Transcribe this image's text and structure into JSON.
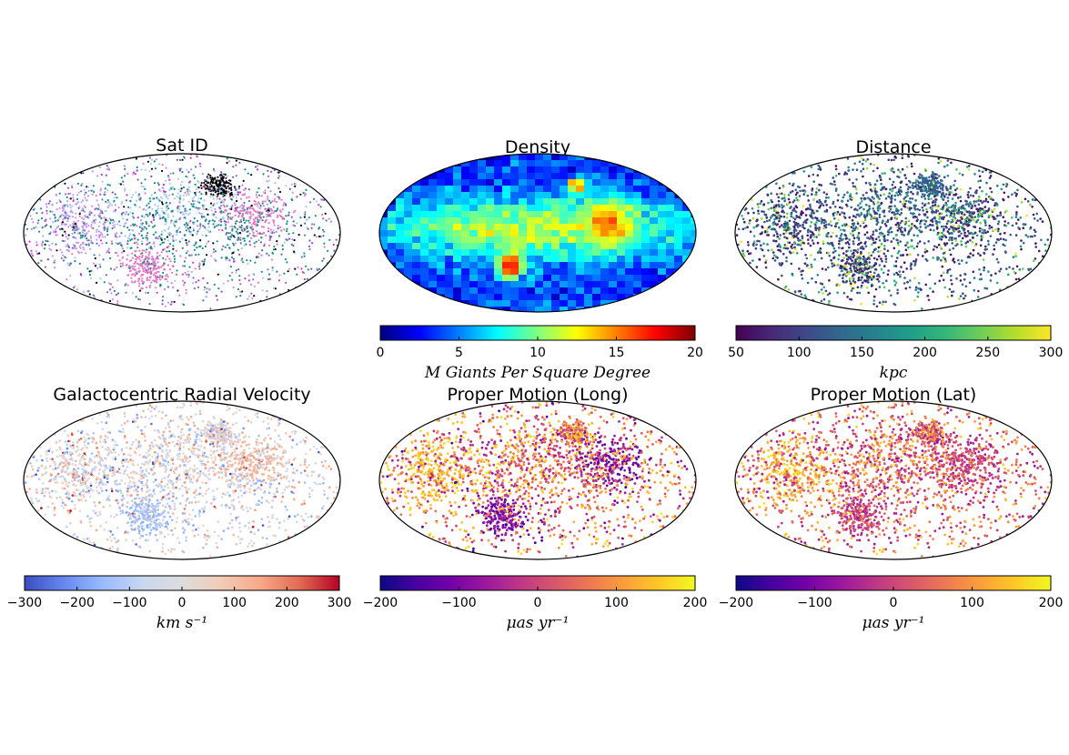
{
  "figure": {
    "panels": [
      {
        "id": "sat_id",
        "title": "Sat ID",
        "kind": "scatter-categorical",
        "categories": [
          "sat-black",
          "sat-pink",
          "sat-violet",
          "sat-lightblue",
          "sat-teal",
          "sat-magenta"
        ]
      },
      {
        "id": "density",
        "title": "Density",
        "kind": "heatmap",
        "colormap": "jet",
        "colorbar": {
          "min": 0,
          "max": 20,
          "ticks": [
            "0",
            "5",
            "10",
            "15",
            "20"
          ],
          "label": "M Giants Per Square Degree"
        }
      },
      {
        "id": "distance",
        "title": "Distance",
        "kind": "scatter",
        "colormap": "viridis",
        "colorbar": {
          "min": 50,
          "max": 300,
          "ticks": [
            "50",
            "100",
            "150",
            "200",
            "250",
            "300"
          ],
          "label": "kpc"
        }
      },
      {
        "id": "rv",
        "title": "Galactocentric Radial Velocity",
        "kind": "scatter",
        "colormap": "coolwarm",
        "colorbar": {
          "min": -300,
          "max": 300,
          "ticks": [
            "−300",
            "−200",
            "−100",
            "0",
            "100",
            "200",
            "300"
          ],
          "label": "km s⁻¹"
        }
      },
      {
        "id": "pm_long",
        "title": "Proper Motion (Long)",
        "kind": "scatter",
        "colormap": "plasma",
        "colorbar": {
          "min": -200,
          "max": 200,
          "ticks": [
            "−200",
            "−100",
            "0",
            "100",
            "200"
          ],
          "label": "μas yr⁻¹"
        }
      },
      {
        "id": "pm_lat",
        "title": "Proper Motion (Lat)",
        "kind": "scatter",
        "colormap": "plasma",
        "colorbar": {
          "min": -200,
          "max": 200,
          "ticks": [
            "−200",
            "−100",
            "0",
            "100",
            "200"
          ],
          "label": "μas yr⁻¹"
        }
      }
    ]
  },
  "chart_data": [
    {
      "type": "scatter",
      "title": "Sat ID",
      "projection": "mollweide",
      "xlabel": "",
      "ylabel": "",
      "legend": [],
      "note": "stellar particles colored by satellite ID; concentrated clumps visible"
    },
    {
      "type": "heatmap",
      "title": "Density",
      "projection": "mollweide",
      "colormap": "jet",
      "colorbar_range": [
        0,
        20
      ],
      "colorbar_ticks": [
        0,
        5,
        10,
        15,
        20
      ],
      "colorbar_label": "M Giants Per Square Degree"
    },
    {
      "type": "scatter",
      "title": "Distance",
      "projection": "mollweide",
      "colormap": "viridis",
      "colorbar_range": [
        50,
        300
      ],
      "colorbar_ticks": [
        50,
        100,
        150,
        200,
        250,
        300
      ],
      "colorbar_label": "kpc"
    },
    {
      "type": "scatter",
      "title": "Galactocentric Radial Velocity",
      "projection": "mollweide",
      "colormap": "coolwarm",
      "colorbar_range": [
        -300,
        300
      ],
      "colorbar_ticks": [
        -300,
        -200,
        -100,
        0,
        100,
        200,
        300
      ],
      "colorbar_label": "km s^-1"
    },
    {
      "type": "scatter",
      "title": "Proper Motion (Long)",
      "projection": "mollweide",
      "colormap": "plasma",
      "colorbar_range": [
        -200,
        200
      ],
      "colorbar_ticks": [
        -200,
        -100,
        0,
        100,
        200
      ],
      "colorbar_label": "μas yr^-1"
    },
    {
      "type": "scatter",
      "title": "Proper Motion (Lat)",
      "projection": "mollweide",
      "colormap": "plasma",
      "colorbar_range": [
        -200,
        200
      ],
      "colorbar_ticks": [
        -200,
        -100,
        0,
        100,
        200
      ],
      "colorbar_label": "μas yr^-1"
    }
  ],
  "colors": {
    "jet": [
      "#00007f",
      "#0000ff",
      "#007fff",
      "#00ffff",
      "#7fff7f",
      "#ffff00",
      "#ff7f00",
      "#ff0000",
      "#7f0000"
    ],
    "viridis": [
      "#440154",
      "#482878",
      "#3e4989",
      "#31688e",
      "#26828e",
      "#1f9e89",
      "#35b779",
      "#6ece58",
      "#b5de2b",
      "#fde725"
    ],
    "coolwarm": [
      "#3b4cc0",
      "#6788ee",
      "#9abbff",
      "#c9d7f0",
      "#dddddd",
      "#f2cbb7",
      "#f7a889",
      "#e26952",
      "#b40426"
    ],
    "plasma": [
      "#0d0887",
      "#46039f",
      "#7201a8",
      "#9c179e",
      "#bd3786",
      "#d8576b",
      "#ed7953",
      "#fb9f3a",
      "#fdca26",
      "#f0f921"
    ],
    "satid": [
      "#000000",
      "#e377c2",
      "#c594f0",
      "#a9c8e8",
      "#1f8a8a",
      "#cc33cc",
      "#6a5acd",
      "#9467bd"
    ]
  }
}
